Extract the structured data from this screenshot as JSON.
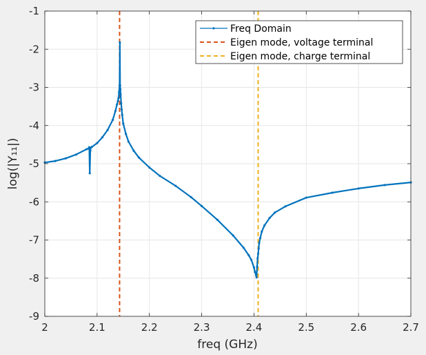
{
  "chart_data": {
    "type": "line",
    "xlabel": "freq (GHz)",
    "ylabel": "log(|Y₁₁|)",
    "xlim": [
      2,
      2.7
    ],
    "ylim": [
      -9,
      -1
    ],
    "xticks": [
      2,
      2.1,
      2.2,
      2.3,
      2.4,
      2.5,
      2.6,
      2.7
    ],
    "xtick_labels": [
      "2",
      "2.1",
      "2.2",
      "2.3",
      "2.4",
      "2.5",
      "2.6",
      "2.7"
    ],
    "yticks": [
      -9,
      -8,
      -7,
      -6,
      -5,
      -4,
      -3,
      -2,
      -1
    ],
    "ytick_labels": [
      "-9",
      "-8",
      "-7",
      "-6",
      "-5",
      "-4",
      "-3",
      "-2",
      "-1"
    ],
    "grid": true,
    "legend_position": "top-right",
    "series": [
      {
        "name": "Freq Domain",
        "color": "#0072bd",
        "style": "solid-with-point-markers",
        "x": [
          2.0,
          2.02,
          2.04,
          2.06,
          2.08,
          2.084,
          2.085,
          2.086,
          2.087,
          2.088,
          2.09,
          2.1,
          2.11,
          2.12,
          2.13,
          2.135,
          2.138,
          2.14,
          2.141,
          2.142,
          2.143,
          2.1435,
          2.144,
          2.1445,
          2.145,
          2.146,
          2.147,
          2.148,
          2.15,
          2.155,
          2.16,
          2.17,
          2.18,
          2.2,
          2.22,
          2.25,
          2.28,
          2.3,
          2.33,
          2.36,
          2.38,
          2.39,
          2.395,
          2.4,
          2.402,
          2.404,
          2.405,
          2.406,
          2.407,
          2.408,
          2.409,
          2.41,
          2.412,
          2.415,
          2.42,
          2.43,
          2.44,
          2.46,
          2.5,
          2.55,
          2.6,
          2.65,
          2.7
        ],
        "y": [
          -4.97,
          -4.93,
          -4.86,
          -4.76,
          -4.62,
          -4.6,
          -4.57,
          -5.25,
          -4.66,
          -4.58,
          -4.56,
          -4.46,
          -4.31,
          -4.12,
          -3.85,
          -3.62,
          -3.45,
          -3.35,
          -3.28,
          -3.12,
          -2.95,
          -1.82,
          -2.95,
          -3.05,
          -3.18,
          -3.42,
          -3.58,
          -3.72,
          -3.95,
          -4.22,
          -4.42,
          -4.66,
          -4.84,
          -5.1,
          -5.32,
          -5.58,
          -5.88,
          -6.11,
          -6.47,
          -6.88,
          -7.2,
          -7.4,
          -7.52,
          -7.72,
          -7.84,
          -7.92,
          -7.98,
          -7.7,
          -7.48,
          -7.36,
          -7.22,
          -7.08,
          -6.95,
          -6.78,
          -6.62,
          -6.42,
          -6.28,
          -6.12,
          -5.89,
          -5.76,
          -5.65,
          -5.56,
          -5.49
        ]
      },
      {
        "name": "Eigen mode, voltage terminal",
        "color": "#d95319",
        "style": "dashed-vertical",
        "x": [
          2.143
        ]
      },
      {
        "name": "Eigen mode, charge terminal",
        "color": "#edb120",
        "style": "dashed-vertical",
        "x": [
          2.408
        ]
      }
    ]
  }
}
